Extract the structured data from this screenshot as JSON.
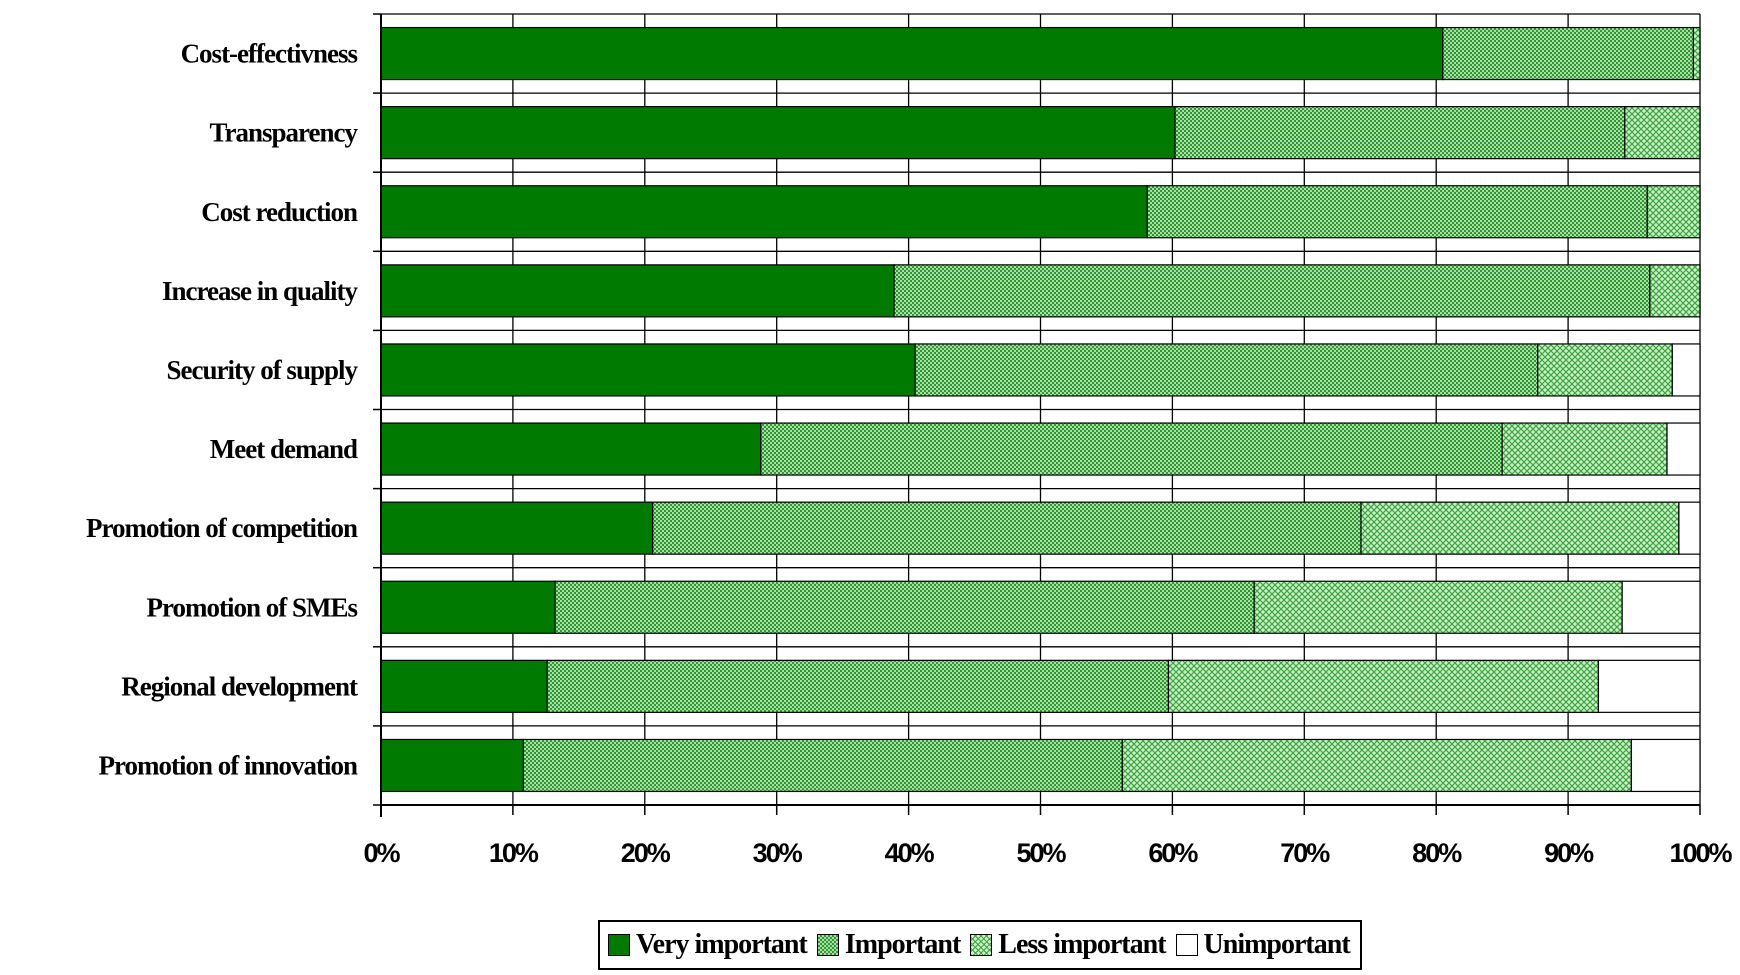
{
  "chart_data": {
    "type": "bar",
    "orientation": "horizontal",
    "stacked": "percent",
    "categories": [
      "Cost-effectivness",
      "Transparency",
      "Cost reduction",
      "Increase in quality",
      "Security of supply",
      "Meet demand",
      "Promotion of competition",
      "Promotion of SMEs",
      "Regional development",
      "Promotion of innovation"
    ],
    "series": [
      {
        "name": "Very important",
        "color": "#007a00",
        "pattern": "solid",
        "values": [
          80.5,
          60.2,
          58.1,
          38.9,
          40.5,
          28.8,
          20.6,
          13.2,
          12.6,
          10.8
        ]
      },
      {
        "name": "Important",
        "color": "#3aa83a",
        "pattern": "dense-dots",
        "values": [
          19.0,
          34.1,
          37.9,
          57.3,
          47.2,
          56.2,
          53.7,
          53.0,
          47.1,
          45.4
        ]
      },
      {
        "name": "Less important",
        "color": "#8fd48f",
        "pattern": "crosshatch",
        "values": [
          0.5,
          5.7,
          4.0,
          3.8,
          10.2,
          12.5,
          24.1,
          27.9,
          32.6,
          38.6
        ]
      },
      {
        "name": "Unimportant",
        "color": "#ffffff",
        "pattern": "none",
        "values": [
          0.0,
          0.0,
          0.0,
          0.0,
          2.1,
          2.5,
          1.6,
          5.9,
          7.7,
          5.2
        ]
      }
    ],
    "x_ticks": [
      "0%",
      "10%",
      "20%",
      "30%",
      "40%",
      "50%",
      "60%",
      "70%",
      "80%",
      "90%",
      "100%"
    ],
    "xlim": [
      0,
      100
    ],
    "grid": "vertical",
    "legend_position": "bottom"
  },
  "legend": {
    "items": [
      {
        "label": "Very important"
      },
      {
        "label": "Important"
      },
      {
        "label": "Less important"
      },
      {
        "label": "Unimportant"
      }
    ]
  }
}
